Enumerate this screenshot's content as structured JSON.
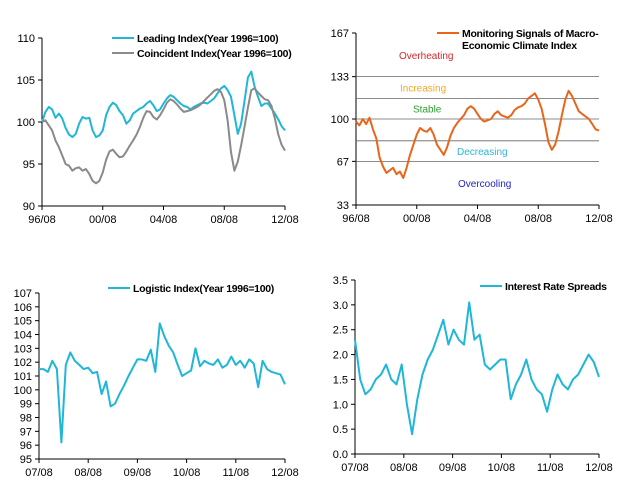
{
  "chart_data": [
    {
      "id": "leading-coincident",
      "type": "line",
      "x_ticks": [
        "96/08",
        "00/08",
        "04/08",
        "08/08",
        "12/08"
      ],
      "ylim": [
        90,
        110
      ],
      "y_ticks": [
        90,
        95,
        100,
        105,
        110
      ],
      "grid": false,
      "legend_position": "top-right",
      "series": [
        {
          "name": "Leading Index(Year 1996=100)",
          "color": "#1fb6d8",
          "values": [
            100,
            101.2,
            101.8,
            101.5,
            100.5,
            101,
            100.4,
            99.3,
            98.5,
            98.2,
            98.6,
            99.8,
            100.6,
            100.4,
            100.5,
            99,
            98.2,
            98.4,
            99,
            100.8,
            101.8,
            102.3,
            102,
            101.3,
            100.8,
            99.8,
            100.2,
            101,
            101.3,
            101.6,
            101.8,
            102.2,
            102.5,
            102,
            101.3,
            101.5,
            102.2,
            102.8,
            103.2,
            103,
            102.6,
            102.2,
            101.9,
            101.8,
            101.5,
            101.8,
            102,
            102.2,
            102.3,
            102.2,
            102.5,
            102.8,
            103.4,
            104,
            104.3,
            103.8,
            103,
            100.8,
            98.6,
            99.8,
            102.5,
            105.3,
            106,
            104.2,
            103,
            101.9,
            102.2,
            102.2,
            101.6,
            101,
            100.3,
            99.5,
            99
          ]
        },
        {
          "name": "Coincident Index(Year 1996=100)",
          "color": "#8a8a8a",
          "values": [
            100,
            100.2,
            99.6,
            99,
            97.8,
            97,
            96,
            95,
            94.8,
            94.2,
            94.5,
            94.6,
            94.2,
            94.4,
            93.8,
            93,
            92.7,
            93,
            94,
            95.5,
            96.5,
            96.7,
            96.2,
            95.8,
            95.9,
            96.5,
            97.2,
            97.8,
            98.5,
            99.4,
            100.5,
            101.3,
            101.2,
            100.6,
            100.3,
            100.8,
            101.5,
            102.3,
            102.7,
            102.5,
            102.1,
            101.6,
            101.2,
            101.3,
            101.4,
            101.6,
            101.8,
            102.1,
            102.5,
            102.9,
            103.3,
            103.7,
            103.9,
            103.6,
            102.6,
            100.2,
            96.4,
            94.2,
            95.3,
            97.2,
            99.4,
            101.7,
            103.8,
            104,
            103.5,
            103.1,
            102.7,
            102.6,
            101.9,
            100.4,
            98.5,
            97.3,
            96.6
          ]
        }
      ]
    },
    {
      "id": "monitoring-signals",
      "type": "line",
      "x_ticks": [
        "96/08",
        "00/08",
        "04/08",
        "08/08",
        "12/08"
      ],
      "ylim": [
        33,
        167
      ],
      "y_ticks": [
        33,
        67,
        100,
        133,
        167
      ],
      "grid": false,
      "legend_position": "top-right",
      "reference_lines": [
        133,
        116,
        100,
        83,
        67
      ],
      "zones": [
        {
          "label": "Overheating",
          "color": "#d62728",
          "y": 150
        },
        {
          "label": "Increasing",
          "color": "#f5a623",
          "y": 124.5
        },
        {
          "label": "Stable",
          "color": "#2ca02c",
          "y": 108
        },
        {
          "label": "Decreasing",
          "color": "#2bb5d8",
          "y": 75
        },
        {
          "label": "Overcooling",
          "color": "#1f1fbf",
          "y": 50
        }
      ],
      "series": [
        {
          "name": "Monitoring Signals of Macro-Economic Climate Index",
          "color": "#e8651a",
          "values": [
            98,
            95,
            100,
            96,
            101,
            92,
            85,
            70,
            63,
            58,
            60,
            62,
            57,
            59,
            54,
            62,
            72,
            80,
            88,
            93,
            91,
            90,
            93,
            88,
            80,
            76,
            72,
            78,
            87,
            93,
            97,
            100,
            103,
            108,
            110,
            108,
            104,
            100,
            98,
            99,
            100,
            104,
            106,
            103,
            102,
            101,
            103,
            107,
            109,
            110,
            112,
            116,
            118,
            120,
            115,
            108,
            96,
            82,
            76,
            80,
            90,
            103,
            115,
            122,
            118,
            112,
            106,
            104,
            102,
            100,
            96,
            92,
            91
          ]
        }
      ]
    },
    {
      "id": "logistic-index",
      "type": "line",
      "x_ticks": [
        "07/08",
        "08/08",
        "09/08",
        "10/08",
        "11/08",
        "12/08"
      ],
      "ylim": [
        95,
        107
      ],
      "y_ticks": [
        95,
        96,
        97,
        98,
        99,
        100,
        101,
        102,
        103,
        104,
        105,
        106,
        107
      ],
      "grid": false,
      "legend_position": "top-right",
      "series": [
        {
          "name": "Logistic Index(Year 1996=100)",
          "color": "#1fb6d8",
          "values": [
            101.5,
            101.5,
            101.3,
            102.1,
            101.5,
            96.2,
            101.8,
            102.7,
            102.1,
            101.8,
            101.5,
            101.6,
            101.2,
            101.3,
            99.7,
            100.6,
            98.8,
            99,
            99.7,
            100.3,
            101,
            101.6,
            102.2,
            102.2,
            102.1,
            102.9,
            101.3,
            104.8,
            103.9,
            103.2,
            102.7,
            101.8,
            101,
            101.2,
            101.4,
            103,
            101.7,
            102.1,
            101.9,
            101.8,
            102.2,
            101.6,
            101.8,
            102.4,
            101.8,
            102.1,
            101.6,
            102.2,
            101.9,
            100.2,
            102.1,
            101.5,
            101.3,
            101.2,
            101.1,
            100.4
          ]
        }
      ]
    },
    {
      "id": "interest-rate-spreads",
      "type": "line",
      "x_ticks": [
        "07/08",
        "08/08",
        "09/08",
        "10/08",
        "11/08",
        "12/08"
      ],
      "ylim": [
        0,
        3.5
      ],
      "y_ticks": [
        0.0,
        0.5,
        1.0,
        1.5,
        2.0,
        2.5,
        3.0,
        3.5
      ],
      "y_tick_labels": [
        "0.0",
        "0.5",
        "1.0",
        "1.5",
        "2.0",
        "2.5",
        "3.0",
        "3.5"
      ],
      "grid": false,
      "legend_position": "top-right",
      "series": [
        {
          "name": "Interest Rate Spreads",
          "color": "#1fb6d8",
          "values": [
            2.3,
            1.5,
            1.2,
            1.3,
            1.5,
            1.6,
            1.8,
            1.5,
            1.4,
            1.8,
            1.0,
            0.4,
            1.1,
            1.6,
            1.9,
            2.1,
            2.4,
            2.7,
            2.2,
            2.5,
            2.3,
            2.2,
            3.05,
            2.3,
            2.4,
            1.8,
            1.7,
            1.8,
            1.9,
            1.9,
            1.1,
            1.4,
            1.6,
            1.9,
            1.5,
            1.3,
            1.2,
            0.85,
            1.3,
            1.6,
            1.4,
            1.3,
            1.5,
            1.6,
            1.8,
            2.0,
            1.85,
            1.55
          ]
        }
      ]
    }
  ]
}
